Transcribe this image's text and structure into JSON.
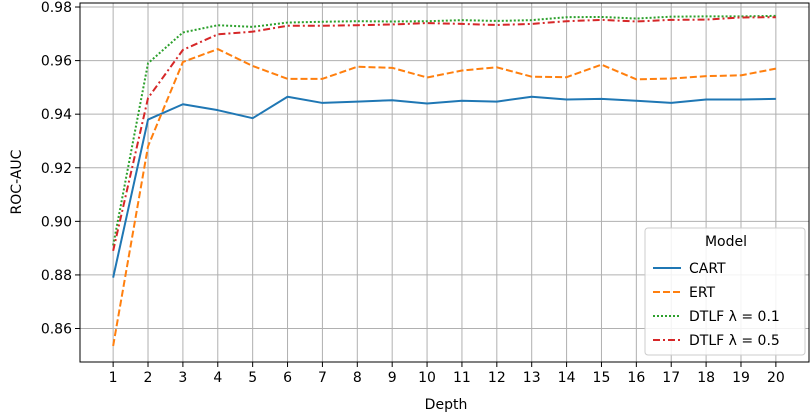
{
  "chart_data": {
    "type": "line",
    "xlabel": "Depth",
    "ylabel": "ROC-AUC",
    "x": [
      1,
      2,
      3,
      4,
      5,
      6,
      7,
      8,
      9,
      10,
      11,
      12,
      13,
      14,
      15,
      16,
      17,
      18,
      19,
      20
    ],
    "xlim": [
      0.05,
      20.95
    ],
    "ylim": [
      0.8475,
      0.9815
    ],
    "yticks": [
      0.86,
      0.88,
      0.9,
      0.92,
      0.94,
      0.96,
      0.98
    ],
    "ytick_labels": [
      "0.86",
      "0.88",
      "0.90",
      "0.92",
      "0.94",
      "0.96",
      "0.98"
    ],
    "grid": true,
    "legend": {
      "title": "Model",
      "position": "lower-right"
    },
    "series": [
      {
        "name": "CART",
        "color": "#1f77b4",
        "style": "solid",
        "values": [
          0.879,
          0.938,
          0.9437,
          0.9415,
          0.9385,
          0.9465,
          0.9442,
          0.9447,
          0.9452,
          0.944,
          0.945,
          0.9447,
          0.9465,
          0.9455,
          0.9457,
          0.945,
          0.9442,
          0.9455,
          0.9455,
          0.9457
        ]
      },
      {
        "name": "ERT",
        "color": "#ff7f0e",
        "style": "dashed",
        "values": [
          0.8535,
          0.928,
          0.9595,
          0.9643,
          0.958,
          0.9532,
          0.9532,
          0.9577,
          0.9573,
          0.9537,
          0.9563,
          0.9575,
          0.954,
          0.9538,
          0.9585,
          0.953,
          0.9533,
          0.9542,
          0.9545,
          0.957
        ]
      },
      {
        "name": "DTLF λ = 0.1",
        "color": "#2ca02c",
        "style": "dotted",
        "values": [
          0.891,
          0.959,
          0.9705,
          0.9732,
          0.9726,
          0.9742,
          0.9745,
          0.9747,
          0.9746,
          0.9747,
          0.9751,
          0.9748,
          0.9751,
          0.9762,
          0.9763,
          0.9757,
          0.9764,
          0.9765,
          0.9765,
          0.9767
        ]
      },
      {
        "name": "DTLF λ = 0.5",
        "color": "#d62728",
        "style": "dashdot",
        "values": [
          0.889,
          0.946,
          0.964,
          0.9698,
          0.9708,
          0.973,
          0.973,
          0.9732,
          0.9735,
          0.974,
          0.9737,
          0.9733,
          0.9737,
          0.9747,
          0.9752,
          0.9746,
          0.9752,
          0.9753,
          0.9761,
          0.9762
        ]
      }
    ]
  }
}
